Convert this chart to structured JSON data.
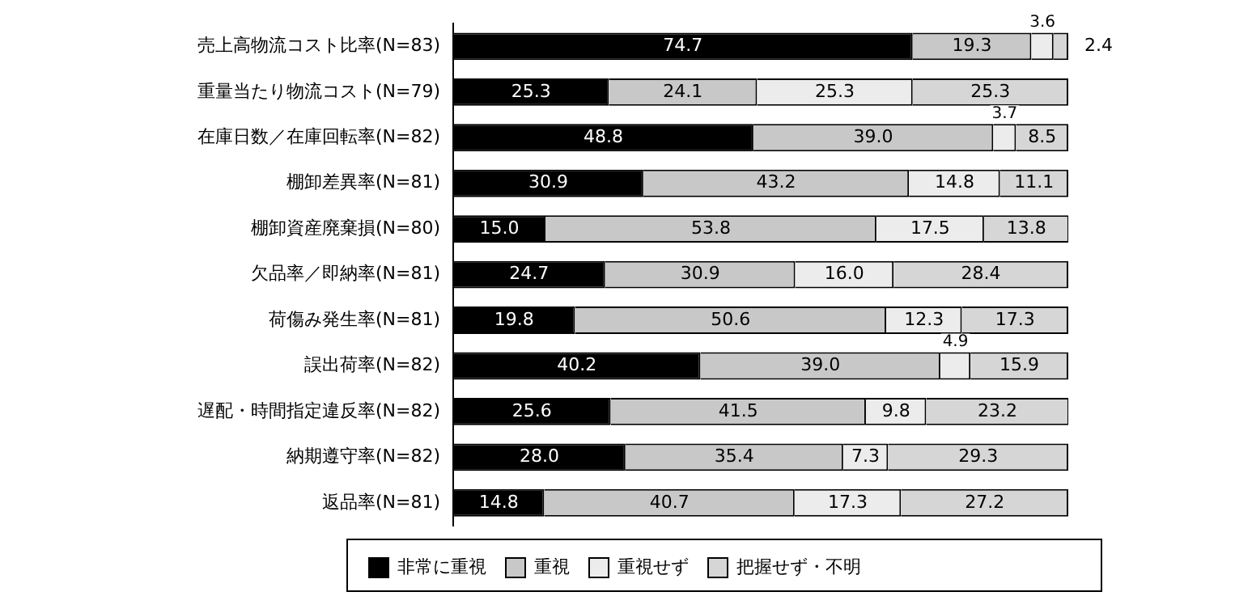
{
  "chart_data": {
    "type": "bar",
    "orientation": "horizontal",
    "stacked": true,
    "grid": false,
    "legend": "bottom",
    "tick_labels": "y",
    "xlim": [
      0,
      100
    ],
    "categories": [
      "売上高物流コスト比率(N=83)",
      "重量当たり物流コスト(N=79)",
      "在庫日数／在庫回転率(N=82)",
      "棚卸差異率(N=81)",
      "棚卸資産廃棄損(N=80)",
      "欠品率／即納率(N=81)",
      "荷傷み発生率(N=81)",
      "誤出荷率(N=82)",
      "遅配・時間指定違反率(N=82)",
      "納期遵守率(N=82)",
      "返品率(N=81)"
    ],
    "series": [
      {
        "name": "非常に重視",
        "color": "#000000",
        "values": [
          74.7,
          25.3,
          48.8,
          30.9,
          15.0,
          24.7,
          19.8,
          40.2,
          25.6,
          28.0,
          14.8
        ],
        "value_labels": [
          "74.7",
          "25.3",
          "48.8",
          "30.9",
          "15.0",
          "24.7",
          "19.8",
          "40.2",
          "25.6",
          "28.0",
          "14.8"
        ]
      },
      {
        "name": "重視",
        "color": "#c8c8c8",
        "values": [
          19.3,
          24.1,
          39.0,
          43.2,
          53.8,
          30.9,
          50.6,
          39.0,
          41.5,
          35.4,
          40.7
        ],
        "value_labels": [
          "19.3",
          "24.1",
          "39.0",
          "43.2",
          "53.8",
          "30.9",
          "50.6",
          "39.0",
          "41.5",
          "35.4",
          "40.7"
        ]
      },
      {
        "name": "重視せず",
        "color": "#ececec",
        "values": [
          3.6,
          25.3,
          3.7,
          14.8,
          17.5,
          16.0,
          12.3,
          4.9,
          9.8,
          7.3,
          17.3
        ],
        "value_labels": [
          "3.6",
          "25.3",
          "3.7",
          "14.8",
          "17.5",
          "16.0",
          "12.3",
          "4.9",
          "9.8",
          "7.3",
          "17.3"
        ]
      },
      {
        "name": "把握せず・不明",
        "color": "#d6d6d6",
        "values": [
          2.4,
          25.3,
          8.5,
          11.1,
          13.8,
          28.4,
          17.3,
          15.9,
          23.2,
          29.3,
          27.2
        ],
        "value_labels": [
          "2.4",
          "25.3",
          "8.5",
          "11.1",
          "13.8",
          "28.4",
          "17.3",
          "15.9",
          "23.2",
          "29.3",
          "27.2"
        ]
      }
    ]
  }
}
